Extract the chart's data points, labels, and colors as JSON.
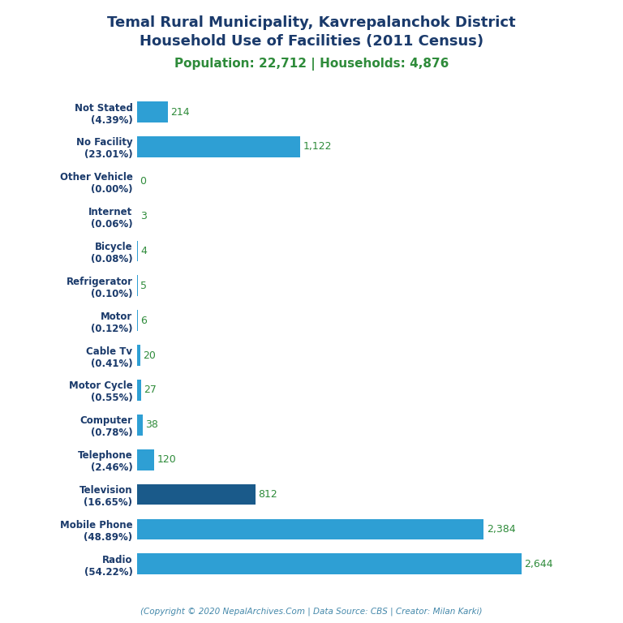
{
  "title_line1": "Temal Rural Municipality, Kavrepalanchok District",
  "title_line2": "Household Use of Facilities (2011 Census)",
  "subtitle": "Population: 22,712 | Households: 4,876",
  "footer": "(Copyright © 2020 NepalArchives.Com | Data Source: CBS | Creator: Milan Karki)",
  "categories": [
    "Not Stated\n(4.39%)",
    "No Facility\n(23.01%)",
    "Other Vehicle\n(0.00%)",
    "Internet\n(0.06%)",
    "Bicycle\n(0.08%)",
    "Refrigerator\n(0.10%)",
    "Motor\n(0.12%)",
    "Cable Tv\n(0.41%)",
    "Motor Cycle\n(0.55%)",
    "Computer\n(0.78%)",
    "Telephone\n(2.46%)",
    "Television\n(16.65%)",
    "Mobile Phone\n(48.89%)",
    "Radio\n(54.22%)"
  ],
  "values": [
    214,
    1122,
    0,
    3,
    4,
    5,
    6,
    20,
    27,
    38,
    120,
    812,
    2384,
    2644
  ],
  "bar_color_light": "#2e9fd4",
  "bar_color_dark": "#1a5a8a",
  "title_color": "#1a3a6b",
  "subtitle_color": "#2e8b3a",
  "value_color": "#2e8b3a",
  "footer_color": "#4488aa",
  "background_color": "#ffffff",
  "figsize": [
    7.68,
    7.68
  ],
  "dpi": 100
}
